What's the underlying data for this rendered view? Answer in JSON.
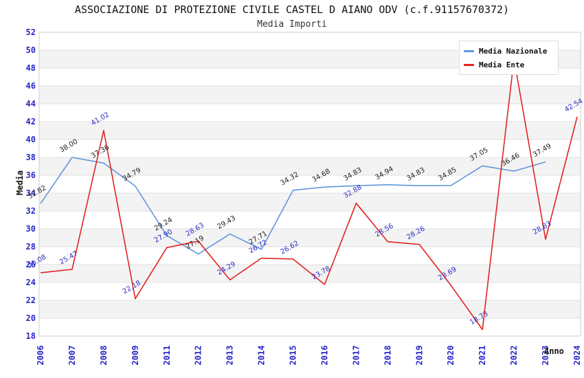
{
  "chart_data": {
    "type": "line",
    "title": "ASSOCIAZIONE DI PROTEZIONE CIVILE CASTEL D AIANO ODV (c.f.91157670372)",
    "subtitle": "Media Importi",
    "xlabel": "Anno",
    "ylabel": "Media",
    "categories": [
      "2006",
      "2007",
      "2008",
      "2009",
      "2011",
      "2012",
      "2013",
      "2014",
      "2015",
      "2016",
      "2017",
      "2018",
      "2019",
      "2020",
      "2021",
      "2022",
      "2023",
      "2024"
    ],
    "series": [
      {
        "name": "Media Nazionale",
        "color": "#5f97dc",
        "label_color": "#222222",
        "values": [
          32.82,
          38.0,
          37.36,
          34.79,
          29.24,
          27.19,
          29.43,
          27.71,
          34.32,
          34.68,
          34.83,
          34.94,
          34.83,
          34.85,
          37.05,
          36.46,
          37.49,
          null
        ]
      },
      {
        "name": "Media Ente",
        "color": "#e32222",
        "label_color": "#2b2bc4",
        "values": [
          25.08,
          25.47,
          41.02,
          22.18,
          27.9,
          28.63,
          24.29,
          26.72,
          26.62,
          23.78,
          32.88,
          28.56,
          28.26,
          23.69,
          18.73,
          49.01,
          28.83,
          42.54
        ]
      }
    ],
    "ylim": [
      18,
      52
    ],
    "ytick_step": 2,
    "grid": "horizontal-bands",
    "legend_position": "top-right",
    "colors": {
      "axis_ticks": "#2727c8",
      "grid_band": "#f3f3f3",
      "grid_line": "#e2e2e2",
      "plot_border": "#cccccc",
      "background": "#ffffff"
    }
  }
}
